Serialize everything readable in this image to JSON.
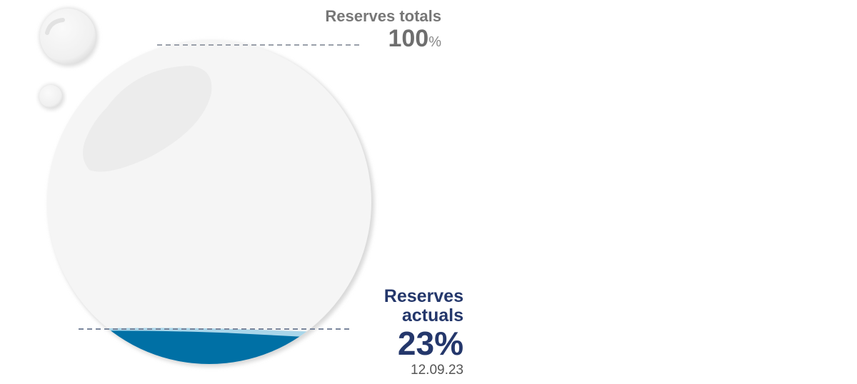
{
  "chart_data": {
    "type": "gauge",
    "total": {
      "label": "Reserves totals",
      "value": "100",
      "unit": "%"
    },
    "current": {
      "label": "Reserves actuals",
      "value": "23%",
      "date": "12.09.23"
    },
    "values": {
      "total_percent": 100,
      "current_percent": 23
    }
  },
  "colors": {
    "water_dark": "#0070a5",
    "water_light": "#a9d6ea",
    "circle_fill": "#f5f5f5",
    "dash_line": "#8a93a6",
    "total_text": "#777777",
    "actual_text": "#24376b"
  }
}
